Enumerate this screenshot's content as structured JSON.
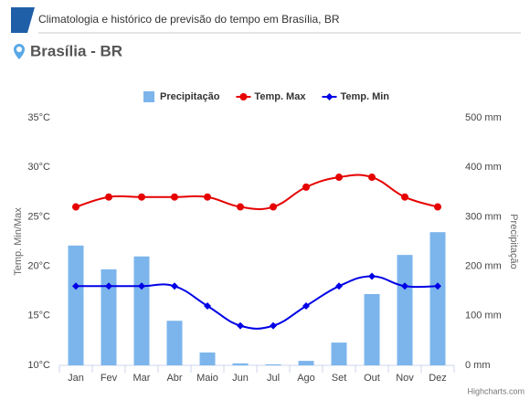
{
  "header": {
    "title": "Climatologia e histórico de previsão do tempo em Brasília, BR",
    "location": "Brasília - BR"
  },
  "chart_data": {
    "type": "combo",
    "categories": [
      "Jan",
      "Fev",
      "Mar",
      "Abr",
      "Maio",
      "Jun",
      "Jul",
      "Ago",
      "Set",
      "Out",
      "Nov",
      "Dez"
    ],
    "series": [
      {
        "name": "Precipitação",
        "type": "bar",
        "axis": "y2",
        "color": "#7cb5ec",
        "values": [
          242,
          194,
          220,
          90,
          26,
          4,
          2,
          9,
          46,
          144,
          223,
          269
        ]
      },
      {
        "name": "Temp. Max",
        "type": "line",
        "color": "#e60000",
        "values": [
          26,
          27,
          27,
          27,
          27,
          26,
          26,
          28,
          29,
          29,
          27,
          26
        ]
      },
      {
        "name": "Temp. Min",
        "type": "line",
        "color": "#0000e6",
        "values": [
          18,
          18,
          18,
          18,
          16,
          14,
          14,
          16,
          18,
          19,
          18,
          18
        ]
      }
    ],
    "ylabel": "Temp. Min/Max",
    "y2label": "Precipitação",
    "ylim": [
      10,
      35
    ],
    "yticks": [
      {
        "value": 10,
        "label": "10°C"
      },
      {
        "value": 15,
        "label": "15°C"
      },
      {
        "value": 20,
        "label": "20°C"
      },
      {
        "value": 25,
        "label": "25°C"
      },
      {
        "value": 30,
        "label": "30°C"
      },
      {
        "value": 35,
        "label": "35°C"
      }
    ],
    "y2lim": [
      0,
      500
    ],
    "y2ticks": [
      {
        "value": 0,
        "label": "0 mm"
      },
      {
        "value": 100,
        "label": "100 mm"
      },
      {
        "value": 200,
        "label": "200 mm"
      },
      {
        "value": 300,
        "label": "300 mm"
      },
      {
        "value": 400,
        "label": "400 mm"
      },
      {
        "value": 500,
        "label": "500 mm"
      }
    ],
    "grid": false,
    "legend": "top",
    "credit": "Highcharts.com"
  }
}
